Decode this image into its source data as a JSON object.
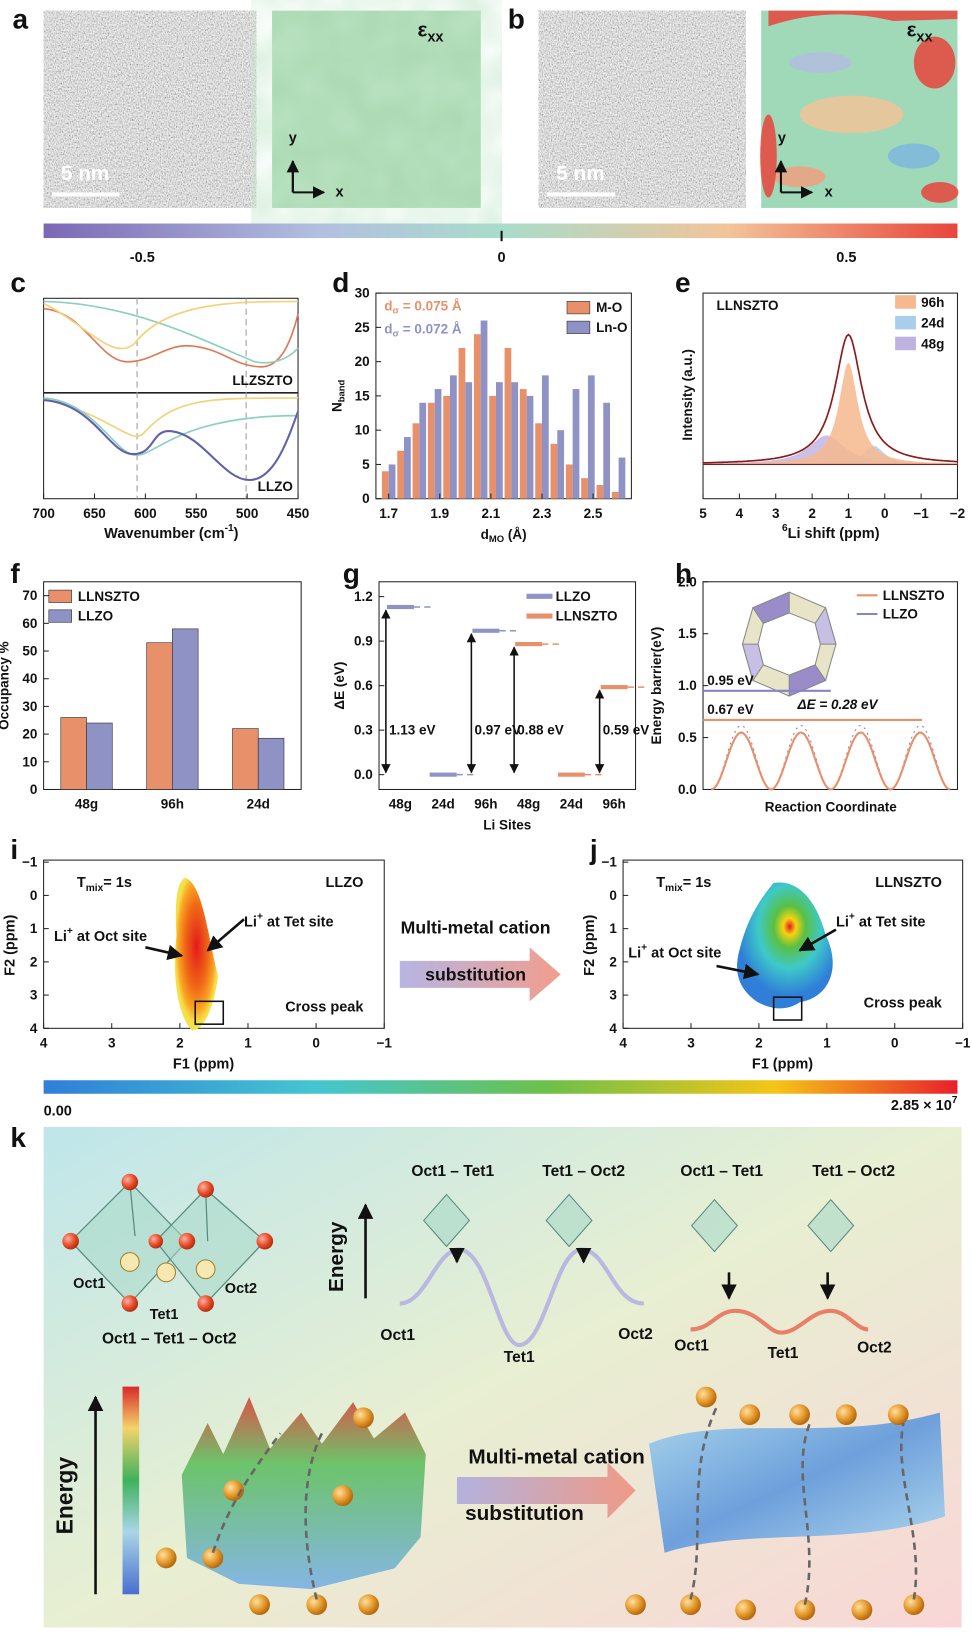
{
  "figure": {
    "a": {
      "label": "a",
      "scale_bar": "5 nm",
      "symbol": "ε",
      "symbol_sub": "xx",
      "y_arrow": "y",
      "x_arrow": "x"
    },
    "b": {
      "label": "b",
      "scale_bar": "5 nm",
      "symbol": "ε",
      "symbol_sub": "xx",
      "y_arrow": "y",
      "x_arrow": "x"
    },
    "strain_scale": [
      "-0.5",
      "0",
      "0.5"
    ],
    "c": {
      "label": "c",
      "xlim": [
        700,
        450
      ],
      "xticks": [
        700,
        650,
        600,
        550,
        500,
        450
      ],
      "xlabel": "Wavenumber (cm",
      "xlabel_sup": "-1",
      "xlabel_end": ")",
      "upper": "LLZSZTO",
      "lower": "LLZO"
    },
    "e": {
      "label": "e",
      "title": "LLNSZTO",
      "ylabel": "Intensity (a.u.)",
      "xlabel_sup": "6",
      "xlabel": "Li shift (ppm)",
      "xlim": [
        5,
        -2
      ],
      "xticks": [
        5,
        4,
        3,
        2,
        1,
        0,
        {
          "value": -1,
          "label": "−1"
        },
        {
          "value": -2,
          "label": "−2"
        }
      ],
      "legend": [
        {
          "name": "96h",
          "color": "#f6b88e"
        },
        {
          "name": "24d",
          "color": "#a9cdea"
        },
        {
          "name": "48g",
          "color": "#bdb2e0"
        }
      ]
    },
    "h": {
      "label": "h",
      "ylabel": "Energy barrier(eV)",
      "xlabel": "Reaction Coordinate",
      "ylim": [
        0,
        2
      ],
      "yticks": [
        {
          "value": 0,
          "label": "0.0"
        },
        0.5,
        {
          "value": 1,
          "label": "1.0"
        },
        1.5,
        {
          "value": 2,
          "label": "2.0"
        }
      ],
      "legend": [
        {
          "name": "LLNSZTO",
          "color": "#e8906a"
        },
        {
          "name": "LLZO",
          "color": "#8484c8"
        }
      ],
      "barriers": [
        0.95,
        0.67
      ],
      "barrier_labels": [
        "0.95 eV",
        "0.67 eV"
      ],
      "delta": "ΔE = 0.28 eV"
    },
    "i": {
      "label": "i",
      "t": "T",
      "t_sub": "mix",
      "t_end": "= 1s",
      "sample": "LLZO",
      "oct": [
        "Li",
        "+",
        " at Oct site"
      ],
      "tet": [
        "Li",
        "+",
        " at Tet site"
      ],
      "cross": "Cross peak",
      "xlabel": "F1 (ppm)",
      "ylabel": "F2 (ppm)",
      "xlim": [
        4,
        -1
      ],
      "xticks": [
        4,
        3,
        2,
        1,
        0,
        {
          "value": -1,
          "label": "−1"
        }
      ],
      "ylim": [
        -1,
        4
      ],
      "yticks": [
        {
          "value": -1,
          "label": "−1"
        },
        0,
        1,
        2,
        3,
        4
      ]
    },
    "j": {
      "label": "j",
      "t": "T",
      "t_sub": "mix",
      "t_end": "= 1s",
      "sample": "LLNSZTO",
      "oct": [
        "Li",
        "+",
        " at Oct site"
      ],
      "tet": [
        "Li",
        "+",
        " at Tet site"
      ],
      "cross": "Cross peak",
      "xlabel": "F1 (ppm)",
      "ylabel": "F2 (ppm)",
      "xlim": [
        4,
        -1
      ],
      "xticks": [
        4,
        3,
        2,
        1,
        0,
        {
          "value": -1,
          "label": "−1"
        }
      ],
      "ylim": [
        -1,
        4
      ],
      "yticks": [
        {
          "value": -1,
          "label": "−1"
        },
        0,
        1,
        2,
        3,
        4
      ]
    },
    "ij_arrow": [
      "Multi-metal cation",
      "substitution"
    ],
    "intensity_scale": {
      "min": "0.00",
      "max": "2.85 × 10",
      "max_sup": "7"
    },
    "k": {
      "label": "k",
      "left_sites": [
        "Oct1",
        "Tet1",
        "Oct2"
      ],
      "left_path": "Oct1 – Tet1 – Oct2",
      "energy": "Energy",
      "steps": [
        "Oct1 – Tet1",
        "Tet1 – Oct2",
        "Oct1 – Tet1",
        "Tet1 – Oct2"
      ],
      "curve_sites": [
        "Oct1",
        "Tet1",
        "Oct2",
        "Oct1",
        "Tet1",
        "Oct2"
      ],
      "energy_big": "Energy",
      "arrow": [
        "Multi-metal cation",
        "substitution"
      ]
    }
  },
  "chart_data": [
    {
      "type": "bar",
      "label": "d",
      "x": [
        1.7,
        1.76,
        1.82,
        1.88,
        1.94,
        2.0,
        2.06,
        2.12,
        2.18,
        2.24,
        2.3,
        2.36,
        2.42,
        2.48,
        2.54,
        2.6
      ],
      "series": [
        {
          "name": "M-O",
          "color": "#e8906a",
          "values": [
            4,
            7,
            11,
            14,
            15,
            22,
            24,
            15,
            22,
            16,
            11,
            8,
            5,
            3,
            2,
            1
          ]
        },
        {
          "name": "Ln-O",
          "color": "#8e92c4",
          "values": [
            5,
            9,
            14,
            16,
            18,
            17,
            26,
            17,
            17,
            15,
            18,
            10,
            16,
            18,
            14,
            6
          ]
        }
      ],
      "xlim": [
        1.65,
        2.65
      ],
      "xticks": [
        1.7,
        1.9,
        2.1,
        2.3,
        2.5
      ],
      "ylim": [
        0,
        30
      ],
      "yticks": [
        0,
        5,
        10,
        15,
        20,
        25,
        30
      ],
      "ylabel": "N",
      "ylabel_sub": "band",
      "xlabel": "d",
      "xlabel_sub": "MO",
      "xlabel_end": " (Å)",
      "annotations": [
        {
          "text": "d",
          "sub": "σ",
          "end": " = 0.075 Å",
          "color": "#e8906a"
        },
        {
          "text": "d",
          "sub": "σ",
          "end": " = 0.072 Å",
          "color": "#8e92c4"
        }
      ],
      "legend": "upper right"
    },
    {
      "type": "bar",
      "label": "f",
      "categories": [
        "48g",
        "96h",
        "24d"
      ],
      "series": [
        {
          "name": "LLNSZTO",
          "color": "#e8906a",
          "values": [
            26,
            53,
            22
          ]
        },
        {
          "name": "LLZO",
          "color": "#8e92c4",
          "values": [
            24,
            58,
            18.5
          ]
        }
      ],
      "ylim": [
        0,
        75
      ],
      "yticks": [
        0,
        10,
        20,
        30,
        40,
        50,
        60,
        70
      ],
      "ylabel": "Occupancy %",
      "legend": "upper left"
    },
    {
      "type": "level",
      "label": "g",
      "categories": [
        "48g",
        "24d",
        "96h",
        "48g",
        "24d",
        "96h"
      ],
      "series": [
        {
          "name": "LLZO",
          "color": "#8e92c4",
          "values": [
            1.13,
            0,
            0.97,
            null,
            null,
            null
          ],
          "value_labels": [
            "1.13 eV",
            null,
            "0.97 eV",
            null,
            null,
            null
          ]
        },
        {
          "name": "LLNSZTO",
          "color": "#e8906a",
          "values": [
            null,
            null,
            null,
            0.88,
            0,
            0.59
          ],
          "value_labels": [
            null,
            null,
            null,
            "0.88 eV",
            null,
            "0.59 eV"
          ]
        }
      ],
      "ylim": [
        -0.1,
        1.3
      ],
      "yticks": [
        {
          "value": 0,
          "label": "0.0"
        },
        0.3,
        0.6,
        0.9,
        1.2
      ],
      "ylabel": "ΔE (eV)",
      "xlabel": "Li Sites",
      "legend": "upper right"
    }
  ]
}
